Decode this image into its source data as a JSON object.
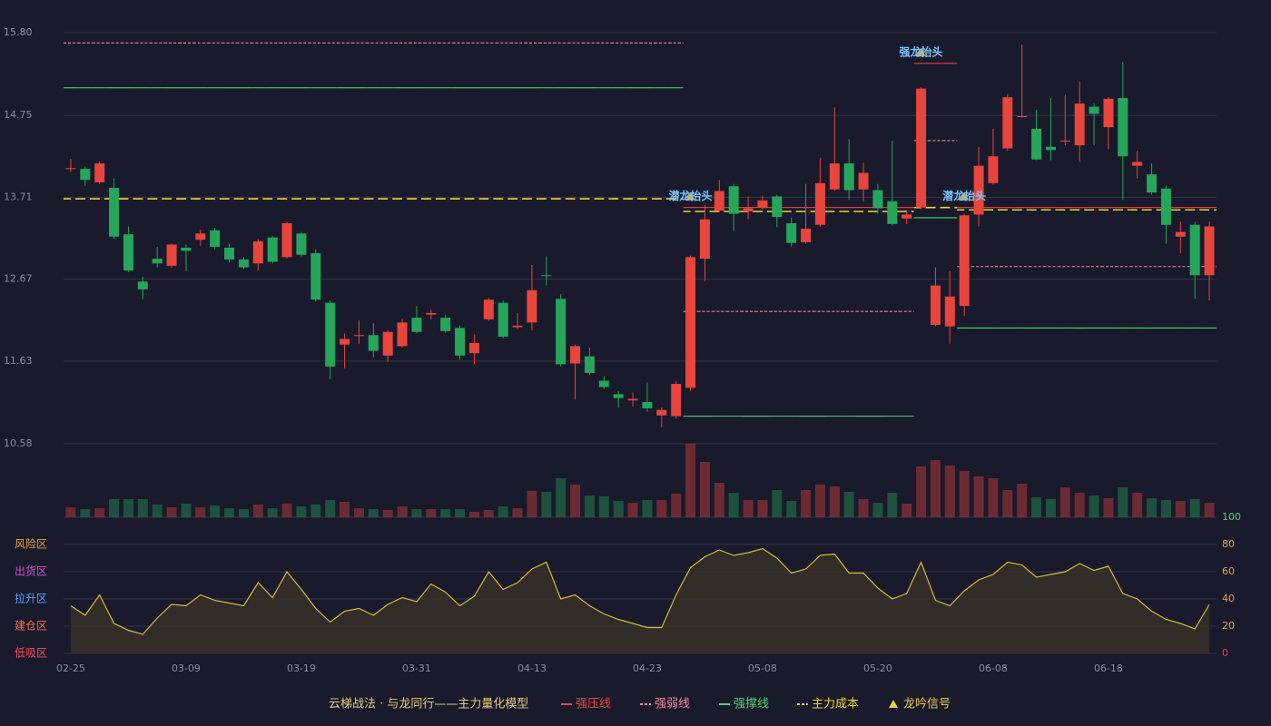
{
  "chart_data": {
    "type": "candlestick",
    "categories": [
      "02-25",
      null,
      null,
      null,
      null,
      null,
      null,
      null,
      "03-09",
      null,
      null,
      null,
      null,
      null,
      null,
      null,
      "03-19",
      null,
      null,
      null,
      null,
      null,
      null,
      null,
      "03-31",
      null,
      null,
      null,
      null,
      null,
      null,
      null,
      "04-13",
      null,
      null,
      null,
      null,
      null,
      null,
      null,
      "04-23",
      null,
      null,
      null,
      null,
      null,
      null,
      null,
      "05-08",
      null,
      null,
      null,
      null,
      null,
      null,
      null,
      "05-20",
      null,
      null,
      null,
      null,
      null,
      null,
      null,
      "06-08",
      null,
      null,
      null,
      null,
      null,
      null,
      null,
      "06-18",
      null,
      null,
      null,
      null,
      null,
      null,
      null
    ],
    "open": [
      14.07,
      14.07,
      13.9,
      13.83,
      13.24,
      12.64,
      12.93,
      12.84,
      13.07,
      13.17,
      13.29,
      13.07,
      12.92,
      12.87,
      13.2,
      12.95,
      13.25,
      13.0,
      12.37,
      11.84,
      11.95,
      11.96,
      11.7,
      11.82,
      12.18,
      12.22,
      12.18,
      12.05,
      11.73,
      12.16,
      12.37,
      12.06,
      12.12,
      12.72,
      12.42,
      11.6,
      11.69,
      11.38,
      11.21,
      11.13,
      11.11,
      10.94,
      10.93,
      11.29,
      12.93,
      13.54,
      13.85,
      13.53,
      13.58,
      13.72,
      13.38,
      13.14,
      13.36,
      13.81,
      14.14,
      13.81,
      13.8,
      13.66,
      13.44,
      13.58,
      12.09,
      12.07,
      12.33,
      13.49,
      13.89,
      14.33,
      14.73,
      14.58,
      14.35,
      14.42,
      14.37,
      14.86,
      14.6,
      14.97,
      14.11,
      14.0,
      13.82,
      13.21,
      13.36,
      12.72
    ],
    "high": [
      14.2,
      14.1,
      14.16,
      13.95,
      13.34,
      12.7,
      13.08,
      13.12,
      13.11,
      13.3,
      13.32,
      13.12,
      12.95,
      13.18,
      13.22,
      13.4,
      13.27,
      13.05,
      12.4,
      11.98,
      12.15,
      12.11,
      12.02,
      12.17,
      12.33,
      12.28,
      12.22,
      12.08,
      11.97,
      12.43,
      12.4,
      12.24,
      12.85,
      12.96,
      12.48,
      11.84,
      11.8,
      11.44,
      11.25,
      11.23,
      11.36,
      11.04,
      11.37,
      12.97,
      13.61,
      13.93,
      13.88,
      13.72,
      13.73,
      13.74,
      13.45,
      13.88,
      14.21,
      14.85,
      14.45,
      14.15,
      13.88,
      14.43,
      13.55,
      15.11,
      12.82,
      12.77,
      13.5,
      14.35,
      14.58,
      15.02,
      15.65,
      14.82,
      14.97,
      15.01,
      15.18,
      14.9,
      14.98,
      15.43,
      14.3,
      14.14,
      13.86,
      13.4,
      13.4,
      13.4
    ],
    "low": [
      14.03,
      13.85,
      13.88,
      13.18,
      12.76,
      12.42,
      12.82,
      12.81,
      12.77,
      13.09,
      13.05,
      12.88,
      12.8,
      12.78,
      12.87,
      12.93,
      12.96,
      12.39,
      11.4,
      11.54,
      11.85,
      11.68,
      11.62,
      11.8,
      11.98,
      12.16,
      11.99,
      11.65,
      11.59,
      12.14,
      11.92,
      12.03,
      12.02,
      12.59,
      11.56,
      11.14,
      11.45,
      11.28,
      11.04,
      11.05,
      10.99,
      10.79,
      10.9,
      11.25,
      12.64,
      13.52,
      13.28,
      13.43,
      13.55,
      13.33,
      13.08,
      13.12,
      13.34,
      13.79,
      13.68,
      13.65,
      13.5,
      13.35,
      13.37,
      13.56,
      12.07,
      11.85,
      12.2,
      13.34,
      13.87,
      14.3,
      14.72,
      14.18,
      14.18,
      14.37,
      14.16,
      14.37,
      14.32,
      13.68,
      13.95,
      13.74,
      13.12,
      13.0,
      12.42,
      12.4
    ],
    "close": [
      14.08,
      13.93,
      14.14,
      13.21,
      12.78,
      12.54,
      12.87,
      13.11,
      13.03,
      13.25,
      13.08,
      12.92,
      12.82,
      13.15,
      12.89,
      13.38,
      12.98,
      12.41,
      11.56,
      11.91,
      11.96,
      11.76,
      12.0,
      12.12,
      12.0,
      12.24,
      12.01,
      11.7,
      11.86,
      12.41,
      11.94,
      12.08,
      12.53,
      12.71,
      11.59,
      11.82,
      11.48,
      11.3,
      11.16,
      11.15,
      11.03,
      11.01,
      11.34,
      12.95,
      13.43,
      13.79,
      13.5,
      13.57,
      13.67,
      13.46,
      13.13,
      13.31,
      13.89,
      14.14,
      13.8,
      14.02,
      13.57,
      13.37,
      13.49,
      15.09,
      12.59,
      12.45,
      13.48,
      14.11,
      14.23,
      14.98,
      14.74,
      14.19,
      14.31,
      14.43,
      14.9,
      14.77,
      14.96,
      14.23,
      14.16,
      13.77,
      13.36,
      13.27,
      12.72,
      13.34
    ],
    "up_color": "#e8453c",
    "down_color": "#26a65b",
    "ylim": [
      10.58,
      15.8
    ],
    "yticks": [
      {
        "value": 15.8,
        "label": "15.80"
      },
      14.75,
      13.71,
      12.67,
      11.63,
      10.58
    ],
    "grid": true,
    "volume": [
      11,
      9,
      10,
      20,
      20,
      20,
      14,
      11,
      15,
      11,
      13,
      10,
      9,
      14,
      10,
      15,
      12,
      14,
      19,
      17,
      10,
      9,
      8,
      12,
      9,
      9,
      9,
      9,
      6,
      8,
      12,
      10,
      29,
      28,
      43,
      36,
      24,
      23,
      18,
      16,
      19,
      19,
      26,
      81,
      61,
      38,
      27,
      19,
      19,
      30,
      18,
      30,
      36,
      34,
      28,
      20,
      16,
      27,
      15,
      56,
      63,
      57,
      51,
      45,
      43,
      30,
      37,
      22,
      20,
      33,
      27,
      24,
      21,
      33,
      27,
      21,
      19,
      18,
      20,
      16
    ],
    "levels": [
      {
        "name": "强压线",
        "color": "#e8453c",
        "style": "solid",
        "values": [
          null,
          null,
          null,
          null,
          null,
          null,
          null,
          null,
          null,
          null,
          null,
          null,
          null,
          null,
          null,
          null,
          null,
          null,
          null,
          null,
          null,
          null,
          null,
          null,
          null,
          null,
          null,
          null,
          null,
          null,
          null,
          null,
          null,
          null,
          null,
          null,
          null,
          null,
          null,
          null,
          null,
          null,
          null,
          13.58,
          13.58,
          13.58,
          13.58,
          13.58,
          13.58,
          13.58,
          13.58,
          13.58,
          13.58,
          13.58,
          13.58,
          13.58,
          13.58,
          13.58,
          13.58,
          15.41,
          15.41,
          15.41,
          13.58,
          13.58,
          13.58,
          13.58,
          13.58,
          13.58,
          13.58,
          13.58,
          13.58,
          13.58,
          13.58,
          13.58,
          13.58,
          13.58,
          13.58,
          13.58,
          13.58,
          13.58
        ]
      },
      {
        "name": "强弱线",
        "color": "#f08a9a",
        "style": "dotted",
        "values": [
          15.67,
          15.67,
          15.67,
          15.67,
          15.67,
          15.67,
          15.67,
          15.67,
          15.67,
          15.67,
          15.67,
          15.67,
          15.67,
          15.67,
          15.67,
          15.67,
          15.67,
          15.67,
          15.67,
          15.67,
          15.67,
          15.67,
          15.67,
          15.67,
          15.67,
          15.67,
          15.67,
          15.67,
          15.67,
          15.67,
          15.67,
          15.67,
          15.67,
          15.67,
          15.67,
          15.67,
          15.67,
          15.67,
          15.67,
          15.67,
          15.67,
          15.67,
          15.67,
          12.26,
          12.26,
          12.26,
          12.26,
          12.26,
          12.26,
          12.26,
          12.26,
          12.26,
          12.26,
          12.26,
          12.26,
          12.26,
          12.26,
          12.26,
          12.26,
          14.43,
          14.43,
          14.43,
          12.83,
          12.83,
          12.83,
          12.83,
          12.83,
          12.83,
          12.83,
          12.83,
          12.83,
          12.83,
          12.83,
          12.83,
          12.83,
          12.83,
          12.83,
          12.83,
          12.83,
          12.83
        ]
      },
      {
        "name": "强撑线",
        "color": "#4cd964",
        "style": "solid",
        "values": [
          15.1,
          15.1,
          15.1,
          15.1,
          15.1,
          15.1,
          15.1,
          15.1,
          15.1,
          15.1,
          15.1,
          15.1,
          15.1,
          15.1,
          15.1,
          15.1,
          15.1,
          15.1,
          15.1,
          15.1,
          15.1,
          15.1,
          15.1,
          15.1,
          15.1,
          15.1,
          15.1,
          15.1,
          15.1,
          15.1,
          15.1,
          15.1,
          15.1,
          15.1,
          15.1,
          15.1,
          15.1,
          15.1,
          15.1,
          15.1,
          15.1,
          15.1,
          15.1,
          10.93,
          10.93,
          10.93,
          10.93,
          10.93,
          10.93,
          10.93,
          10.93,
          10.93,
          10.93,
          10.93,
          10.93,
          10.93,
          10.93,
          10.93,
          10.93,
          13.45,
          13.45,
          13.45,
          12.05,
          12.05,
          12.05,
          12.05,
          12.05,
          12.05,
          12.05,
          12.05,
          12.05,
          12.05,
          12.05,
          12.05,
          12.05,
          12.05,
          12.05,
          12.05,
          12.05,
          12.05
        ]
      },
      {
        "name": "主力成本",
        "color": "#f2d22e",
        "style": "dashed",
        "values": [
          13.69,
          13.69,
          13.69,
          13.69,
          13.69,
          13.69,
          13.69,
          13.69,
          13.69,
          13.69,
          13.69,
          13.69,
          13.69,
          13.69,
          13.69,
          13.69,
          13.69,
          13.69,
          13.69,
          13.69,
          13.69,
          13.69,
          13.69,
          13.69,
          13.69,
          13.69,
          13.69,
          13.69,
          13.69,
          13.69,
          13.69,
          13.69,
          13.69,
          13.69,
          13.69,
          13.69,
          13.69,
          13.69,
          13.69,
          13.69,
          13.69,
          13.69,
          13.69,
          13.53,
          13.53,
          13.53,
          13.53,
          13.53,
          13.53,
          13.53,
          13.53,
          13.53,
          13.53,
          13.53,
          13.53,
          13.53,
          13.53,
          13.53,
          13.53,
          13.58,
          13.58,
          13.58,
          13.55,
          13.55,
          13.55,
          13.55,
          13.55,
          13.55,
          13.55,
          13.55,
          13.55,
          13.55,
          13.55,
          13.55,
          13.55,
          13.55,
          13.55,
          13.55,
          13.55,
          13.55
        ]
      }
    ],
    "signals": [
      null,
      null,
      null,
      null,
      null,
      null,
      null,
      null,
      null,
      null,
      null,
      null,
      null,
      null,
      null,
      null,
      null,
      null,
      null,
      null,
      null,
      null,
      null,
      null,
      null,
      null,
      null,
      null,
      null,
      null,
      null,
      null,
      null,
      null,
      null,
      null,
      null,
      null,
      null,
      null,
      null,
      null,
      null,
      "潜龙抬头",
      null,
      null,
      null,
      null,
      null,
      null,
      null,
      null,
      null,
      null,
      null,
      null,
      null,
      null,
      null,
      "强龙抬头",
      null,
      null,
      "潜龙抬头",
      null,
      null,
      null,
      null,
      null,
      null,
      null,
      null,
      null,
      null,
      null,
      null,
      null,
      null,
      null,
      null,
      null
    ],
    "signal_name": "龙吟信号",
    "signal_color": "#f2c94c",
    "legend_title": "云梯战法 · 与龙同行——主力量化模型",
    "indicator": {
      "color": "#d9b83a",
      "values": [
        35,
        28,
        43,
        22,
        17,
        14,
        26,
        36,
        35,
        43,
        39,
        37,
        35,
        52,
        41,
        60,
        47,
        33,
        23,
        31,
        33,
        28,
        36,
        41,
        38,
        51,
        45,
        35,
        42,
        60,
        47,
        52,
        62,
        67,
        40,
        43,
        35,
        29,
        25,
        22,
        19,
        19,
        43,
        63,
        71,
        76,
        72,
        74,
        77,
        70,
        59,
        62,
        72,
        73,
        59,
        59,
        48,
        40,
        44,
        67,
        39,
        35,
        46,
        54,
        58,
        67,
        65,
        56,
        58,
        60,
        66,
        61,
        64,
        44,
        40,
        31,
        25,
        22,
        18,
        36
      ],
      "y2lim": [
        0,
        100
      ],
      "y2ticks": [
        0,
        20,
        40,
        60,
        80,
        100
      ],
      "y2tick_colors": [
        "#e8453c",
        "#e8a23c",
        "#e8a23c",
        "#e8a23c",
        "#e8a23c",
        "#4cd964"
      ],
      "zones": [
        {
          "label": "风险区",
          "value": 80,
          "color": "#e8a23c"
        },
        {
          "label": "出货区",
          "value": 60,
          "color": "#d94fd9"
        },
        {
          "label": "拉升区",
          "value": 40,
          "color": "#5aa0ff"
        },
        {
          "label": "建仓区",
          "value": 20,
          "color": "#ff6a4a"
        },
        {
          "label": "低吸区",
          "value": 0,
          "color": "#ff4a5a"
        }
      ]
    }
  }
}
